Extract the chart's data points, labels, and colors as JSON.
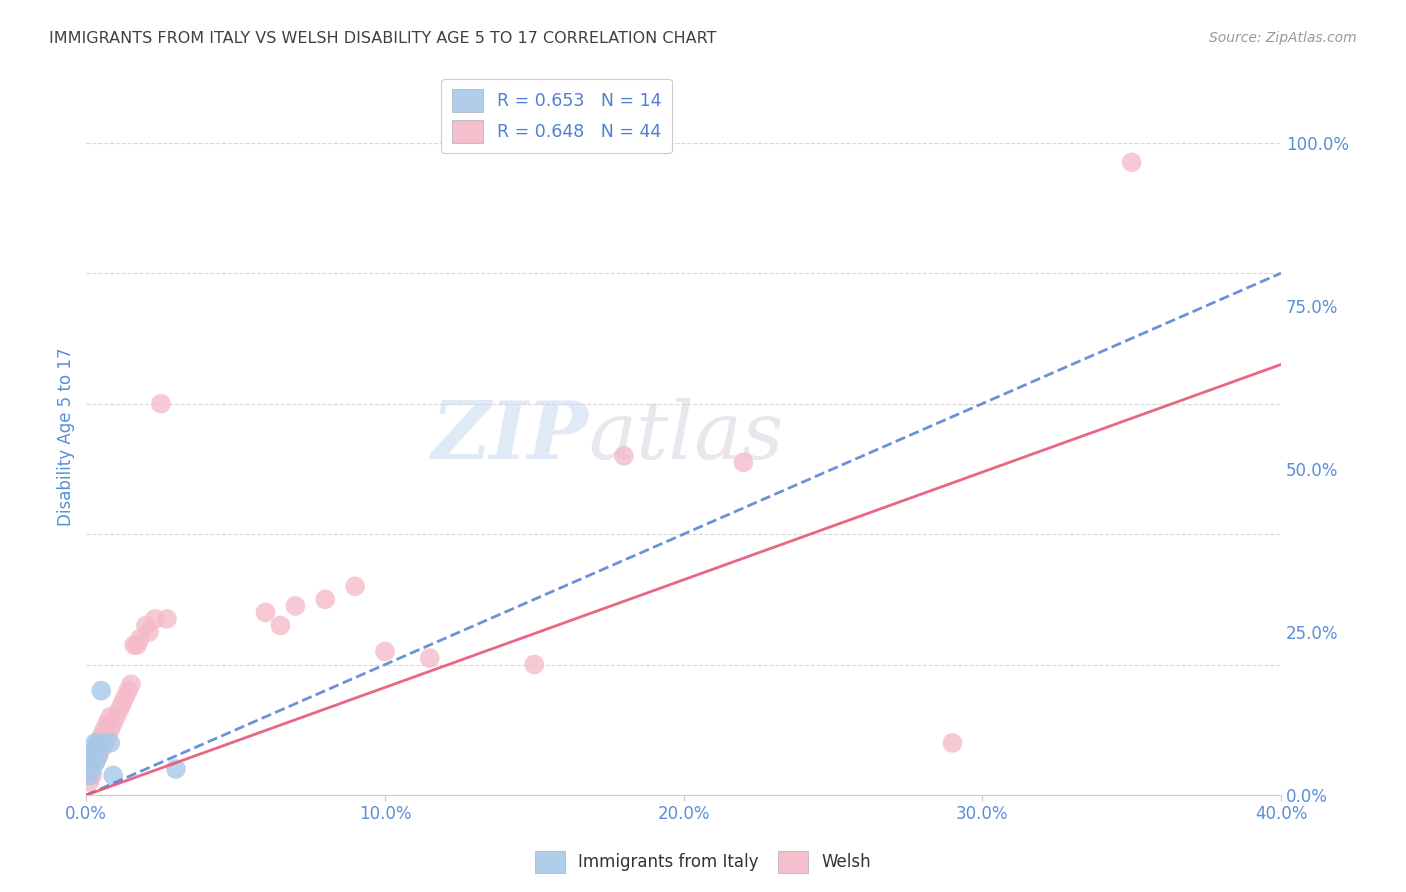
{
  "title": "IMMIGRANTS FROM ITALY VS WELSH DISABILITY AGE 5 TO 17 CORRELATION CHART",
  "source": "Source: ZipAtlas.com",
  "ylabel": "Disability Age 5 to 17",
  "xlim": [
    0.0,
    0.4
  ],
  "ylim": [
    0.0,
    1.1
  ],
  "xticks": [
    0.0,
    0.1,
    0.2,
    0.3,
    0.4
  ],
  "xticklabels": [
    "0.0%",
    "10.0%",
    "20.0%",
    "30.0%",
    "40.0%"
  ],
  "yticks_right": [
    0.0,
    0.25,
    0.5,
    0.75,
    1.0
  ],
  "yticklabels_right": [
    "0.0%",
    "25.0%",
    "50.0%",
    "75.0%",
    "100.0%"
  ],
  "grid_color": "#d8d8d8",
  "background_color": "#ffffff",
  "watermark_zip": "ZIP",
  "watermark_atlas": "atlas",
  "legend_r1": "R = 0.653   N = 14",
  "legend_r2": "R = 0.648   N = 44",
  "blue_marker_color": "#a8c8e8",
  "pink_marker_color": "#f5b8c8",
  "blue_line_color": "#5080d0",
  "pink_line_color": "#e85575",
  "title_color": "#404040",
  "axis_label_color": "#5b8dd9",
  "italy_line_slope": 2.0,
  "italy_line_intercept": 0.0,
  "welsh_line_slope": 1.65,
  "welsh_line_intercept": 0.0,
  "italy_points_x": [
    0.001,
    0.001,
    0.002,
    0.002,
    0.003,
    0.003,
    0.003,
    0.004,
    0.004,
    0.005,
    0.006,
    0.008,
    0.009,
    0.03
  ],
  "italy_points_y": [
    0.03,
    0.05,
    0.04,
    0.06,
    0.05,
    0.07,
    0.08,
    0.06,
    0.08,
    0.16,
    0.08,
    0.08,
    0.03,
    0.04
  ],
  "welsh_points_x": [
    0.001,
    0.001,
    0.002,
    0.002,
    0.002,
    0.003,
    0.003,
    0.004,
    0.004,
    0.005,
    0.005,
    0.006,
    0.006,
    0.007,
    0.007,
    0.008,
    0.008,
    0.009,
    0.01,
    0.011,
    0.012,
    0.013,
    0.014,
    0.015,
    0.016,
    0.017,
    0.018,
    0.02,
    0.021,
    0.023,
    0.025,
    0.027,
    0.06,
    0.065,
    0.07,
    0.08,
    0.09,
    0.1,
    0.115,
    0.15,
    0.18,
    0.22,
    0.29,
    0.35
  ],
  "welsh_points_y": [
    0.02,
    0.04,
    0.03,
    0.05,
    0.06,
    0.05,
    0.07,
    0.06,
    0.08,
    0.07,
    0.09,
    0.08,
    0.1,
    0.09,
    0.11,
    0.1,
    0.12,
    0.11,
    0.12,
    0.13,
    0.14,
    0.15,
    0.16,
    0.17,
    0.23,
    0.23,
    0.24,
    0.26,
    0.25,
    0.27,
    0.6,
    0.27,
    0.28,
    0.26,
    0.29,
    0.3,
    0.32,
    0.22,
    0.21,
    0.2,
    0.52,
    0.51,
    0.08,
    0.97
  ]
}
